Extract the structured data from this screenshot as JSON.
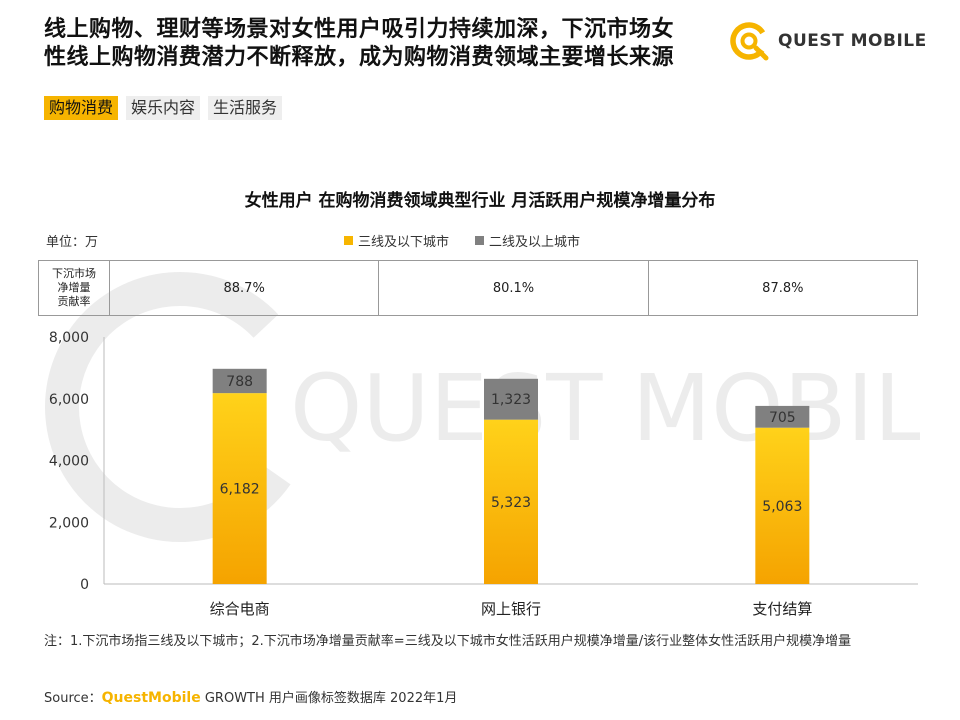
{
  "headline": {
    "line1": "线上购物、理财等场景对女性用户吸引力持续加深，下沉市场女",
    "line2": "性线上购物消费潜力不断释放，成为购物消费领域主要增长来源"
  },
  "logo": {
    "text": "QUEST MOBILE"
  },
  "tabs": [
    {
      "label": "购物消费",
      "active": true
    },
    {
      "label": "娱乐内容",
      "active": false
    },
    {
      "label": "生活服务",
      "active": false
    }
  ],
  "watermark": {
    "text": "QUEST MOBILE"
  },
  "unit_label": "单位：万",
  "contribution": {
    "header": [
      "下沉市场",
      "净增量",
      "贡献率"
    ],
    "values": [
      "88.7%",
      "80.1%",
      "87.8%"
    ]
  },
  "chart_data": {
    "type": "bar",
    "stacked": true,
    "title": "女性用户 在购物消费领域典型行业 月活跃用户规模净增量分布",
    "categories": [
      "综合电商",
      "网上银行",
      "支付结算"
    ],
    "series": [
      {
        "name": "三线及以下城市",
        "values": [
          6182,
          5323,
          5063
        ],
        "labels": [
          "6,182",
          "5,323",
          "5,063"
        ],
        "color": "#f7b500"
      },
      {
        "name": "二线及以上城市",
        "values": [
          788,
          1323,
          705
        ],
        "labels": [
          "788",
          "1,323",
          "705"
        ],
        "color": "#808080"
      }
    ],
    "ylim": [
      0,
      8000
    ],
    "yticks": [
      0,
      2000,
      4000,
      6000,
      8000
    ],
    "ytick_labels": [
      "0",
      "2,000",
      "4,000",
      "6,000",
      "8,000"
    ],
    "legend_position": "top",
    "grid": false
  },
  "note": "注：1.下沉市场指三线及以下城市；2.下沉市场净增量贡献率=三线及以下城市女性活跃用户规模净增量/该行业整体女性活跃用户规模净增量",
  "source": {
    "prefix": "Source：",
    "brand": "QuestMobile",
    "rest": " GROWTH 用户画像标签数据库 2022年1月"
  }
}
